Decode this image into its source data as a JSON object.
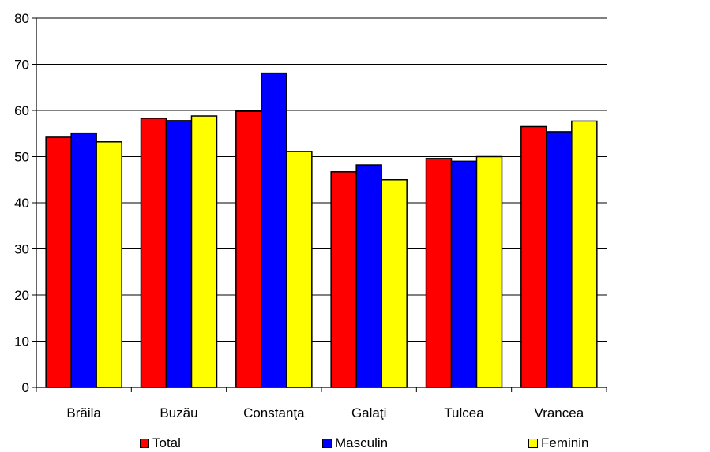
{
  "chart_data": {
    "type": "bar",
    "categories": [
      "Brăila",
      "Buzău",
      "Constanţa",
      "Galaţi",
      "Tulcea",
      "Vrancea"
    ],
    "series": [
      {
        "name": "Total",
        "color": "#ff0000",
        "values": [
          54.2,
          58.3,
          59.8,
          46.7,
          49.6,
          56.5
        ]
      },
      {
        "name": "Masculin",
        "color": "#0000ff",
        "values": [
          55.1,
          57.8,
          68.1,
          48.2,
          49.0,
          55.4
        ]
      },
      {
        "name": "Feminin",
        "color": "#ffff00",
        "values": [
          53.2,
          58.8,
          51.1,
          45.0,
          50.0,
          57.7
        ]
      }
    ],
    "ylim": [
      0,
      80
    ],
    "yticks": [
      0,
      10,
      20,
      30,
      40,
      50,
      60,
      70,
      80
    ],
    "grid": true,
    "legend_position": "bottom",
    "title": "",
    "xlabel": "",
    "ylabel": ""
  }
}
